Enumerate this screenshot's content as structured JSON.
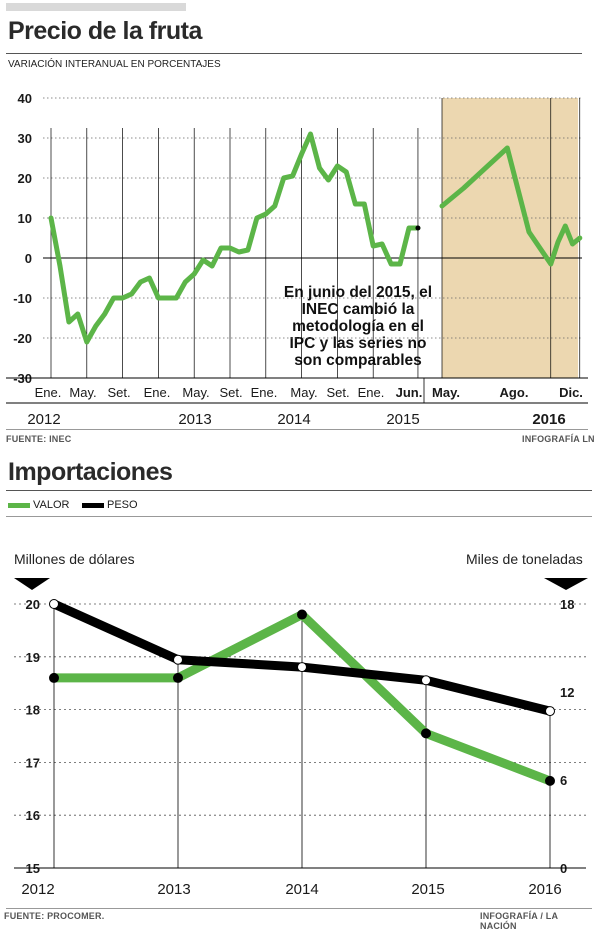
{
  "chart_data": [
    {
      "type": "line",
      "title": "Precio de la fruta",
      "subtitle": "VARIACIÓN INTERANUAL EN PORCENTAJES",
      "ylim": [
        -30,
        40
      ],
      "yticks": [
        40,
        30,
        20,
        10,
        0,
        -10,
        -20,
        -30
      ],
      "x_month_labels": [
        "Ene.",
        "May.",
        "Set.",
        "Ene.",
        "May.",
        "Set.",
        "Ene.",
        "May.",
        "Set.",
        "Ene.",
        "Jun.",
        "May.",
        "Ago.",
        "Dic."
      ],
      "x_year_labels": [
        "2012",
        "2013",
        "2014",
        "2015",
        "2016"
      ],
      "grid": "horizontal dotted",
      "segments": [
        {
          "x": [
            "2012-01",
            "2012-02",
            "2012-03",
            "2012-04",
            "2012-05",
            "2012-06",
            "2012-07",
            "2012-08",
            "2012-09",
            "2012-10",
            "2012-11",
            "2012-12",
            "2013-01",
            "2013-02",
            "2013-03",
            "2013-04",
            "2013-05",
            "2013-06",
            "2013-07",
            "2013-08",
            "2013-09",
            "2013-10",
            "2013-11",
            "2013-12",
            "2014-01",
            "2014-02",
            "2014-03",
            "2014-04",
            "2014-05",
            "2014-06",
            "2014-07",
            "2014-08",
            "2014-09",
            "2014-10",
            "2014-11",
            "2014-12",
            "2015-01",
            "2015-02",
            "2015-03",
            "2015-04",
            "2015-05",
            "2015-06"
          ],
          "values": [
            10,
            -2,
            -16,
            -14,
            -21,
            -17,
            -14,
            -10,
            -10,
            -9,
            -6,
            -5,
            -10,
            -10,
            -10,
            -6,
            -4,
            -0.5,
            -2,
            2.5,
            2.5,
            1.5,
            2,
            10,
            11,
            13,
            20,
            20.5,
            26,
            31,
            22.5,
            19.5,
            23,
            21.5,
            13.5,
            13.5,
            3,
            3.5,
            -1.5,
            -1.5,
            7.5,
            7.5
          ]
        },
        {
          "x": [
            "2015-05",
            "2015-08",
            "2015-11",
            "2016-02",
            "2016-05",
            "2016-08",
            "2016-09",
            "2016-10",
            "2016-11",
            "2016-12"
          ],
          "values": [
            13,
            17.5,
            22.5,
            27.5,
            6.5,
            -1.5,
            4,
            8,
            3.5,
            5
          ]
        }
      ],
      "shaded_period": "May. 2015 – Dic. 2016",
      "annotation": "En junio del 2015, el INEC cambió la metodología en el IPC y las series no son comparables",
      "colors": {
        "line": "#5cb548",
        "shade": "#ecd7b0"
      }
    },
    {
      "type": "line",
      "title": "Importaciones",
      "categories": [
        "2012",
        "2013",
        "2014",
        "2015",
        "2016"
      ],
      "left_axis": {
        "label": "Millones de dólares",
        "ylim": [
          15,
          20
        ],
        "ticks": [
          20,
          19,
          18,
          17,
          16,
          15
        ]
      },
      "right_axis": {
        "label": "Miles de toneladas",
        "ylim": [
          0,
          18
        ],
        "ticks": [
          18,
          12,
          6,
          0
        ]
      },
      "series": [
        {
          "name": "VALOR",
          "axis": "left",
          "values": [
            18.6,
            18.6,
            19.8,
            17.55,
            16.65
          ],
          "color": "#5cb548"
        },
        {
          "name": "PESO",
          "axis": "right",
          "values": [
            18,
            14.2,
            13.7,
            12.8,
            10.7
          ],
          "color": "#000000"
        }
      ],
      "legend": "top-left"
    }
  ],
  "sources": {
    "top_left": "FUENTE: INEC",
    "top_right": "INFOGRAFÍA LN",
    "bottom_left": "FUENTE: PROCOMER.",
    "bottom_right": "INFOGRAFÍA / LA NACIÓN"
  }
}
